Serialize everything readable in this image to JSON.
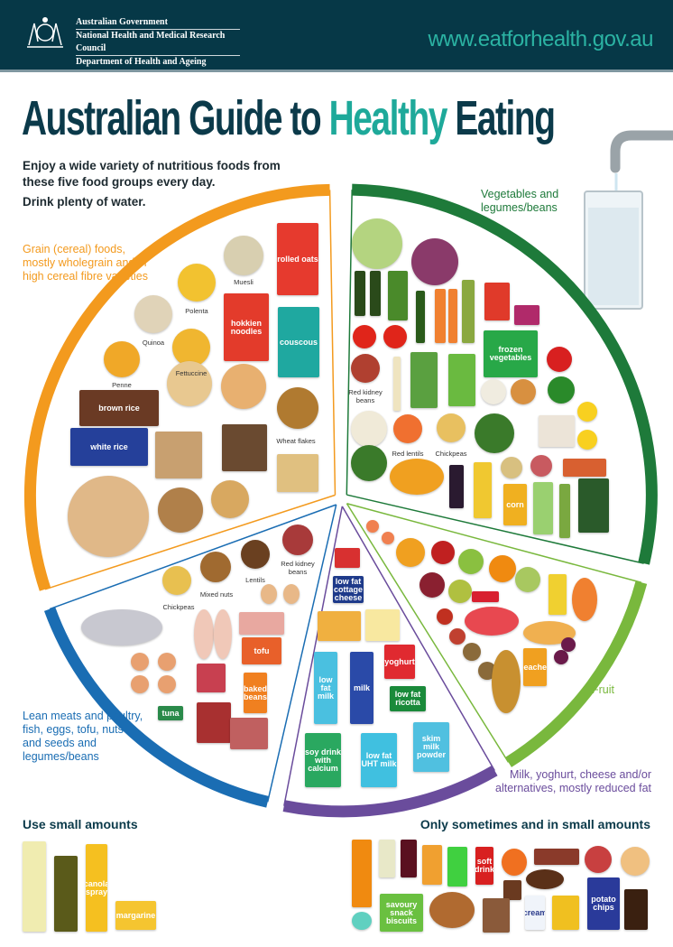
{
  "header": {
    "gov_lines": [
      "Australian Government",
      "National Health and Medical Research Council",
      "Department of Health and Ageing"
    ],
    "url": "www.eatforhealth.gov.au",
    "bg_color": "#063847",
    "url_color": "#2bb3a3"
  },
  "title": {
    "part1": "Australian Guide to ",
    "highlight": "Healthy",
    "part2": " Eating"
  },
  "intro": {
    "line1": "Enjoy a wide variety of nutritious foods from these five food groups every day.",
    "line2": "Drink plenty of water."
  },
  "groups": {
    "grain": {
      "label": "Grain (cereal) foods, mostly wholegrain and/or high cereal fibre varieties",
      "color": "#f39a1e"
    },
    "vegetables": {
      "label": "Vegetables and legumes/beans",
      "color": "#1e7a3a"
    },
    "fruit": {
      "label": "Fruit",
      "color": "#79b83d"
    },
    "dairy": {
      "label": "Milk, yoghurt, cheese and/or alternatives, mostly reduced fat",
      "color": "#6a4c9c"
    },
    "protein": {
      "label": "Lean meats and poultry, fish, eggs, tofu, nuts and seeds and legumes/beans",
      "color": "#1a6db3"
    }
  },
  "captions": {
    "muesli": "Muesli",
    "polenta": "Polenta",
    "quinoa": "Quinoa",
    "fettuccine": "Fettuccine",
    "penne": "Penne",
    "wheat_flakes": "Wheat flakes",
    "veg_kidney": "Red kidney beans",
    "red_lentils": "Red lentils",
    "veg_chickpeas": "Chickpeas",
    "chickpeas": "Chickpeas",
    "mixed_nuts": "Mixed nuts",
    "lentils": "Lentils",
    "kidney": "Red kidney beans"
  },
  "packages": {
    "rolled_oats": "rolled oats",
    "hokkien": "hokkien noodles",
    "couscous": "couscous",
    "brown_rice": "brown rice",
    "white_rice": "white rice",
    "frozen_veg": "frozen vegetables",
    "corn": "corn",
    "tofu": "tofu",
    "baked_beans": "baked beans",
    "tuna": "tuna",
    "cottage": "low fat cottage cheese",
    "yoghurt": "yoghurt",
    "ricotta": "low fat ricotta",
    "lf_milk": "low fat milk",
    "milk": "milk",
    "soy": "soy drink with calcium",
    "uht": "low fat UHT milk",
    "skim": "skim milk powder",
    "peaches": "peaches",
    "canola": "canola spray",
    "margarine": "margarine",
    "soft_drink": "soft drink",
    "savoury": "savoury snack biscuits",
    "cream": "cream",
    "chips": "potato chips"
  },
  "bottom": {
    "left_heading": "Use small amounts",
    "right_heading": "Only sometimes and in small amounts"
  }
}
